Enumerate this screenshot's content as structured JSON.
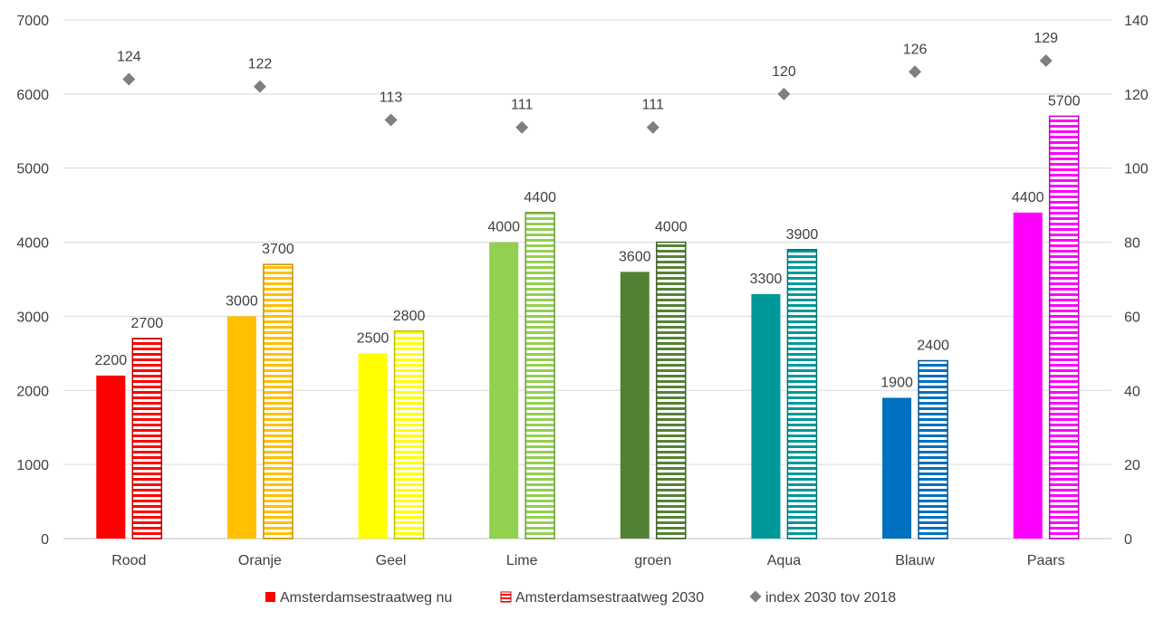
{
  "chart_data": {
    "type": "bar",
    "categories": [
      "Rood",
      "Oranje",
      "Geel",
      "Lime",
      "groen",
      "Aqua",
      "Blauw",
      "Paars"
    ],
    "colors": [
      "#ff0000",
      "#ffc000",
      "#ffff00",
      "#92d050",
      "#548235",
      "#009999",
      "#0070c0",
      "#ff00ff"
    ],
    "series": [
      {
        "name": "Amsterdamsestraatweg nu",
        "kind": "bar-solid",
        "axis": "left",
        "values": [
          2200,
          3000,
          2500,
          4000,
          3600,
          3300,
          1900,
          4400
        ]
      },
      {
        "name": "Amsterdamsestraatweg 2030",
        "kind": "bar-striped",
        "axis": "left",
        "values": [
          2700,
          3700,
          2800,
          4400,
          4000,
          3900,
          2400,
          5700
        ]
      },
      {
        "name": "index 2030 tov 2018",
        "kind": "marker-diamond",
        "axis": "right",
        "values": [
          124,
          122,
          113,
          111,
          111,
          120,
          126,
          129
        ],
        "color": "#7f7f7f"
      }
    ],
    "y_left": {
      "min": 0,
      "max": 7000,
      "ticks": [
        "0",
        "1000",
        "2000",
        "3000",
        "4000",
        "5000",
        "6000",
        "7000"
      ]
    },
    "y_right": {
      "min": 0,
      "max": 140,
      "ticks": [
        "0",
        "20",
        "40",
        "60",
        "80",
        "100",
        "120",
        "140"
      ]
    },
    "grid": true,
    "legend_position": "bottom",
    "legend_swatch_color": "#ff0000",
    "legend_marker_color": "#7f7f7f"
  }
}
